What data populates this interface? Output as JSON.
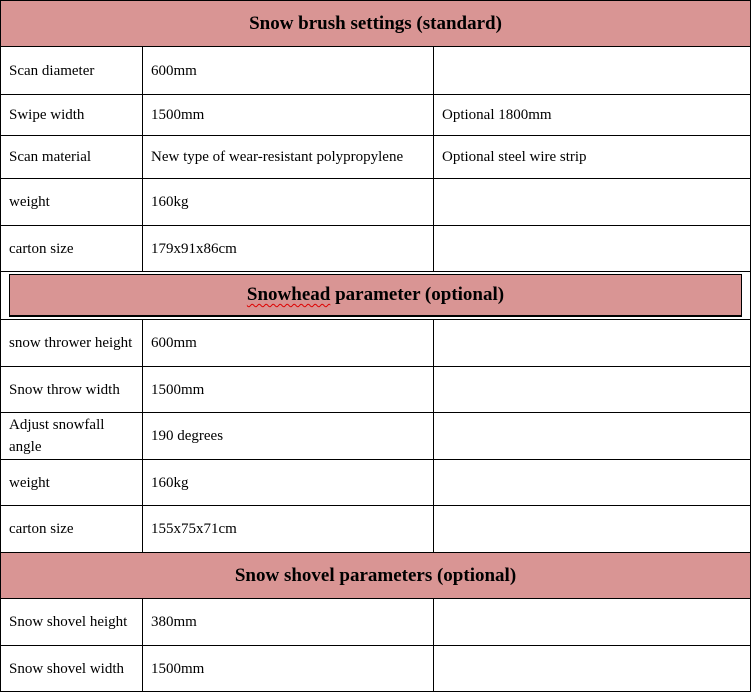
{
  "sections": [
    {
      "title": "Snow brush settings (standard)",
      "rows": [
        [
          "Scan diameter",
          "600mm",
          ""
        ],
        [
          "Swipe width",
          "1500mm",
          "Optional 1800mm"
        ],
        [
          "Scan material",
          "New type of wear-resistant polypropylene",
          "Optional steel wire strip"
        ],
        [
          "weight",
          "160kg",
          ""
        ],
        [
          "carton size",
          "179x91x86cm",
          ""
        ]
      ]
    },
    {
      "title": "Snowhead parameter (optional)",
      "title_first": "Snowhead",
      "title_rest": " parameter (optional)",
      "rows": [
        [
          "snow thrower height",
          "600mm",
          ""
        ],
        [
          "Snow throw width",
          "1500mm",
          ""
        ],
        [
          "Adjust snowfall angle",
          "190 degrees",
          ""
        ],
        [
          "weight",
          "160kg",
          ""
        ],
        [
          "carton size",
          "155x75x71cm",
          ""
        ]
      ]
    },
    {
      "title": "Snow shovel parameters (optional)",
      "rows": [
        [
          "Snow shovel height",
          "380mm",
          ""
        ],
        [
          "Snow shovel width",
          "1500mm",
          ""
        ]
      ]
    }
  ],
  "colors": {
    "header_bg": "#d99594",
    "border": "#000000"
  }
}
